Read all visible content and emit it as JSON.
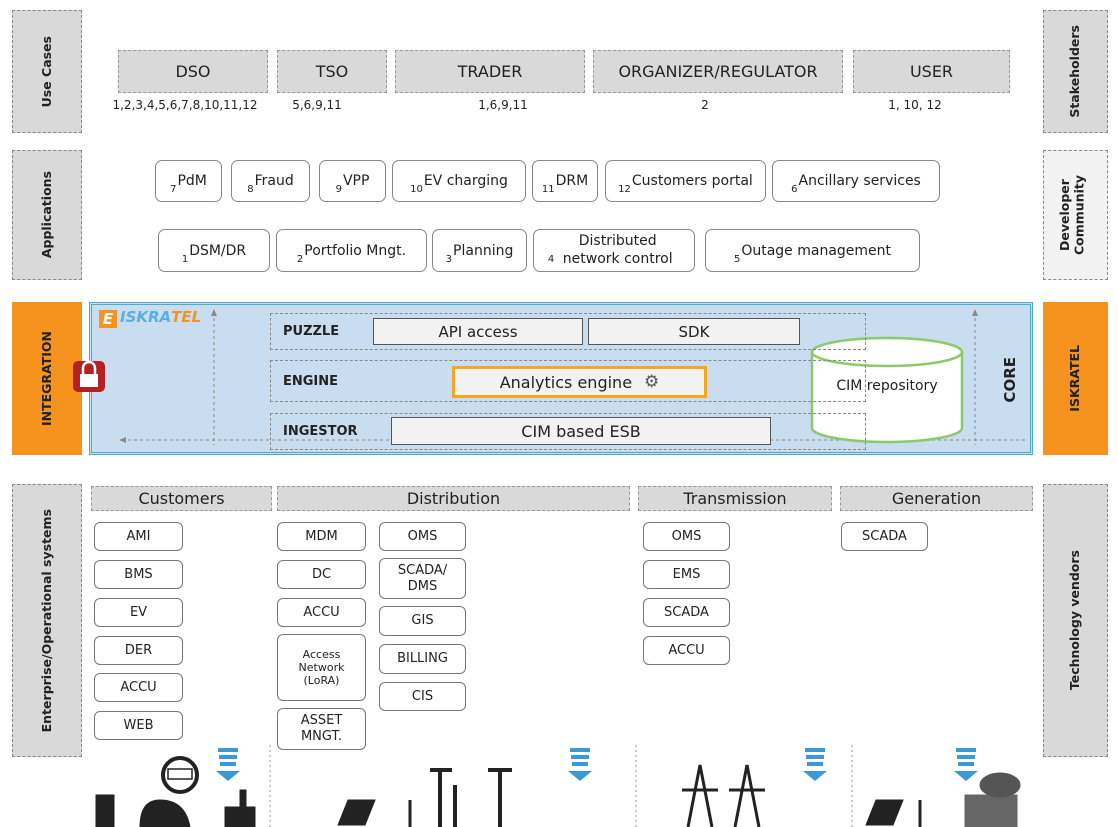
{
  "side_labels": {
    "left": [
      "Use Cases",
      "Applications",
      "INTEGRATION",
      "Enterprise/Operational systems"
    ],
    "right": [
      "Stakeholders",
      "Developer Community",
      "ISKRATEL",
      "Technology vendors"
    ]
  },
  "use_cases": [
    {
      "name": "DSO",
      "apps": "1,2,3,4,5,6,7,8,10,11,12"
    },
    {
      "name": "TSO",
      "apps": "5,6,9,11"
    },
    {
      "name": "TRADER",
      "apps": "1,6,9,11"
    },
    {
      "name": "ORGANIZER/REGULATOR",
      "apps": "2"
    },
    {
      "name": "USER",
      "apps": "1, 10, 12"
    }
  ],
  "applications": [
    {
      "num": "7",
      "label": "PdM"
    },
    {
      "num": "8",
      "label": "Fraud"
    },
    {
      "num": "9",
      "label": "VPP"
    },
    {
      "num": "10",
      "label": "EV charging"
    },
    {
      "num": "11",
      "label": "DRM"
    },
    {
      "num": "12",
      "label": "Customers portal"
    },
    {
      "num": "6",
      "label": "Ancillary services"
    },
    {
      "num": "1",
      "label": "DSM/DR"
    },
    {
      "num": "2",
      "label": "Portfolio Mngt."
    },
    {
      "num": "3",
      "label": "Planning"
    },
    {
      "num": "4",
      "label": "Distributed network control"
    },
    {
      "num": "5",
      "label": "Outage management"
    }
  ],
  "core": {
    "logo": [
      "E",
      "ISKRA",
      "TEL"
    ],
    "label": "CORE",
    "repository": "CIM repository",
    "layers": [
      {
        "name": "PUZZLE",
        "items": [
          "API access",
          "SDK"
        ]
      },
      {
        "name": "ENGINE",
        "items": [
          "Analytics engine"
        ]
      },
      {
        "name": "INGESTOR",
        "items": [
          "CIM based ESB"
        ]
      }
    ]
  },
  "systems": [
    {
      "name": "Customers",
      "items": [
        "AMI",
        "BMS",
        "EV",
        "DER",
        "ACCU",
        "WEB"
      ]
    },
    {
      "name": "Distribution",
      "items": [
        "MDM",
        "DC",
        "ACCU",
        "Access Network (LoRA)",
        "ASSET MNGT.",
        "OMS",
        "SCADA/ DMS",
        "GIS",
        "BILLING",
        "CIS"
      ]
    },
    {
      "name": "Transmission",
      "items": [
        "OMS",
        "EMS",
        "SCADA",
        "ACCU"
      ]
    },
    {
      "name": "Generation",
      "items": [
        "SCADA"
      ]
    }
  ]
}
